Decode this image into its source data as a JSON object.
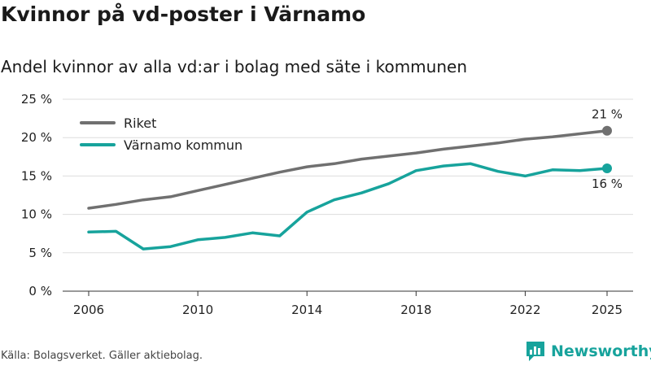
{
  "header": {
    "title": "Kvinnor på vd-poster i Värnamo",
    "subtitle": "Andel kvinnor av alla vd:ar i bolag med säte i kommunen"
  },
  "footer": {
    "source": "Källa: Bolagsverket. Gäller aktiebolag.",
    "brand": "Newsworthy"
  },
  "colors": {
    "riket": "#707070",
    "varnamo": "#17a39c",
    "grid": "#dddddd",
    "axis": "#333333"
  },
  "chart_data": {
    "type": "line",
    "title": "Kvinnor på vd-poster i Värnamo",
    "subtitle": "Andel kvinnor av alla vd:ar i bolag med säte i kommunen",
    "xlabel": "",
    "ylabel": "",
    "x": [
      2006,
      2007,
      2008,
      2009,
      2010,
      2011,
      2012,
      2013,
      2014,
      2015,
      2016,
      2017,
      2018,
      2019,
      2020,
      2021,
      2022,
      2023,
      2024,
      2025
    ],
    "x_ticks": [
      "2006",
      "2010",
      "2014",
      "2018",
      "2022",
      "2025"
    ],
    "y_ticks": [
      "0 %",
      "5 %",
      "10 %",
      "15 %",
      "20 %",
      "25 %"
    ],
    "ylim": [
      0,
      25
    ],
    "grid": true,
    "legend_position": "top-left",
    "series": [
      {
        "name": "Riket",
        "color": "#707070",
        "values": [
          10.8,
          11.3,
          11.9,
          12.3,
          13.1,
          13.9,
          14.7,
          15.5,
          16.2,
          16.6,
          17.2,
          17.6,
          18.0,
          18.5,
          18.9,
          19.3,
          19.8,
          20.1,
          20.5,
          20.9
        ],
        "end_label": "21 %"
      },
      {
        "name": "Värnamo kommun",
        "color": "#17a39c",
        "values": [
          7.7,
          7.8,
          5.5,
          5.8,
          6.7,
          7.0,
          7.6,
          7.2,
          10.3,
          11.9,
          12.8,
          14.0,
          15.7,
          16.3,
          16.6,
          15.6,
          15.0,
          15.8,
          15.7,
          16.0
        ],
        "end_label": "16 %"
      }
    ]
  }
}
